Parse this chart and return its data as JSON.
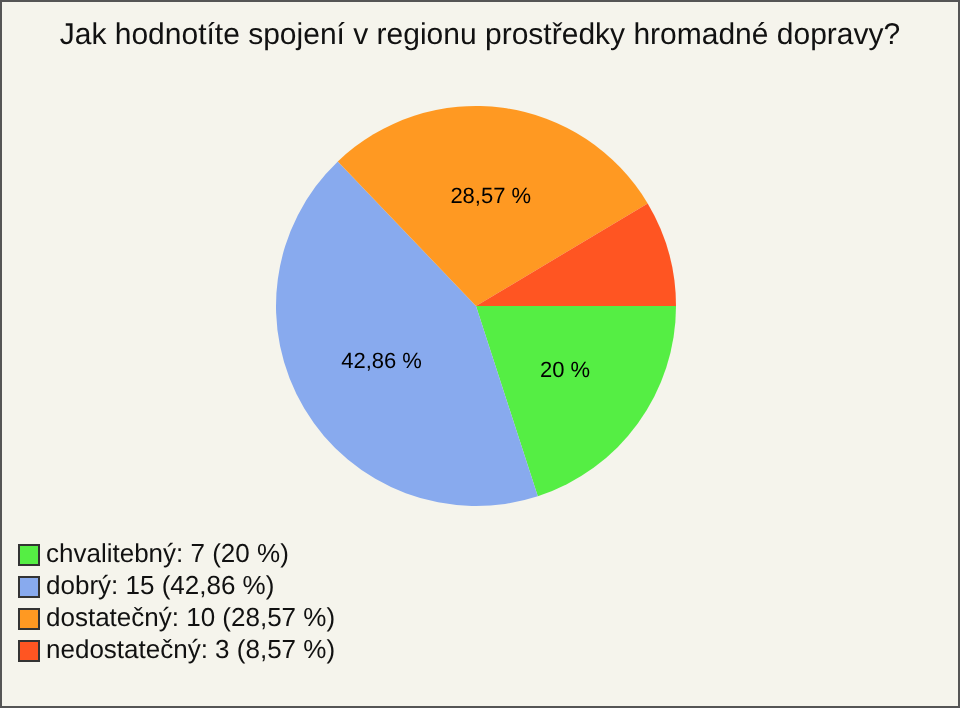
{
  "chart_data": {
    "type": "pie",
    "title": "Jak hodnotíte spojení v regionu prostředky hromadné dopravy?",
    "categories": [
      "chvalitebný: 7 (20 %)",
      "dobrý: 15 (42,86 %)",
      "dostatečný: 10 (28,57 %)",
      "nedostatečný: 3 (8,57 %)"
    ],
    "values": [
      20,
      42.86,
      28.57,
      8.57
    ],
    "colors": [
      "#55ee44",
      "#88aaee",
      "#ff9922",
      "#ff5522"
    ],
    "value_labels": [
      "20 %",
      "42,86 %",
      "28,57 %",
      null
    ],
    "legend": "bottom left"
  }
}
